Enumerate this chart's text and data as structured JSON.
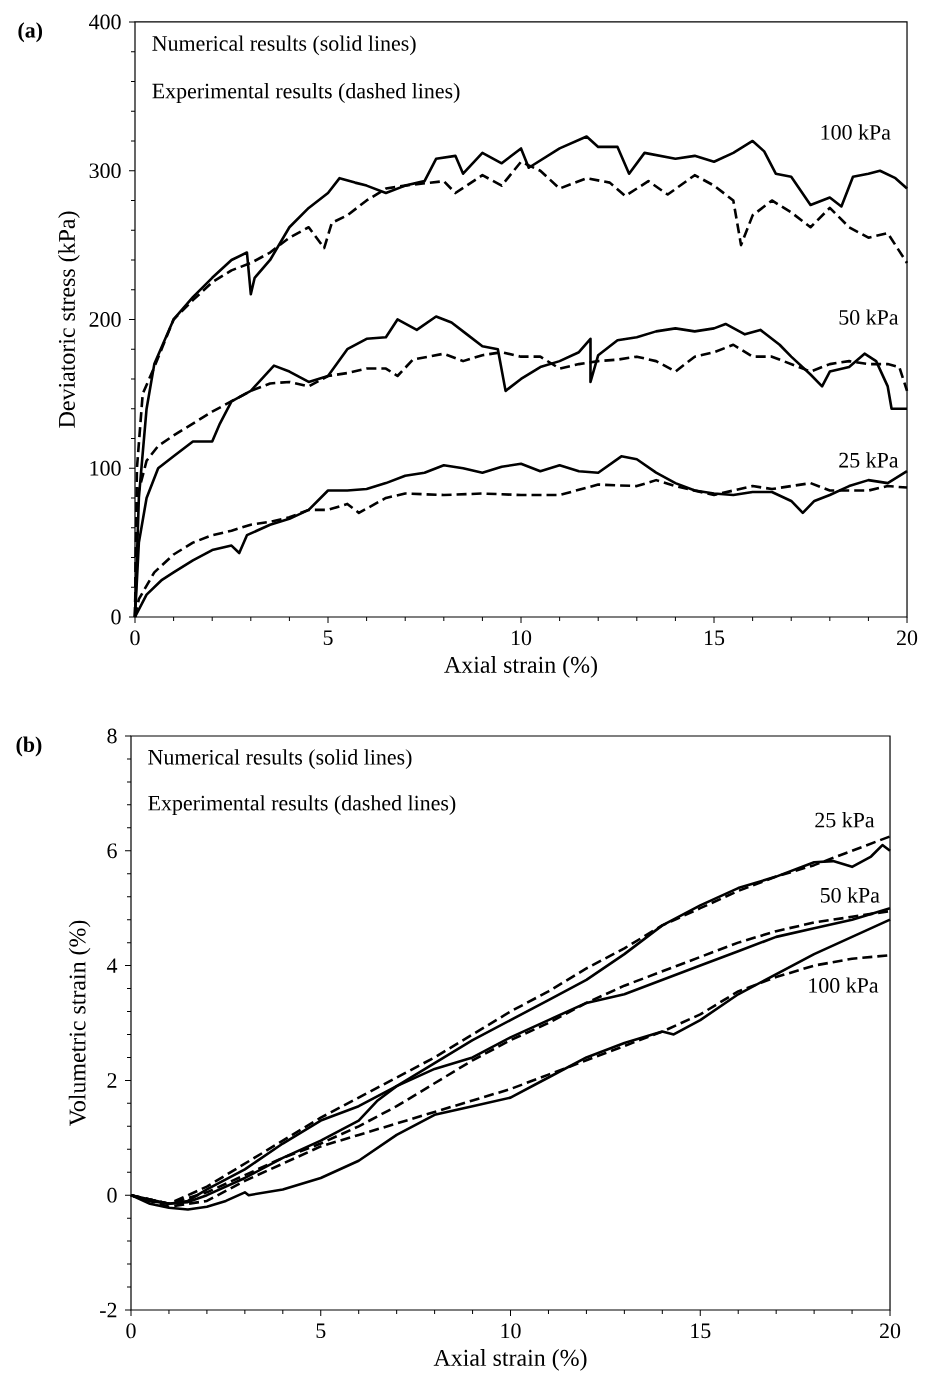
{
  "chart_data": [
    {
      "type": "line",
      "title": "(a)",
      "xlabel": "Axial strain (%)",
      "ylabel": "Deviatoric stress (kPa)",
      "xlim": [
        0,
        20
      ],
      "ylim": [
        0,
        400
      ],
      "xticks": [
        0,
        5,
        10,
        15,
        20
      ],
      "yticks": [
        0,
        100,
        200,
        300,
        400
      ],
      "annotations": [
        "Numerical results (solid lines)",
        "Experimental results (dashed lines)",
        "100 kPa",
        "50 kPa",
        "25 kPa"
      ],
      "series": [
        {
          "color": "#000000",
          "line_style": "solid",
          "x": [
            0,
            0.1,
            0.3,
            0.5,
            1,
            1.5,
            2,
            2.5,
            2.9,
            3,
            3.1,
            3.5,
            4,
            4.5,
            5,
            5.3,
            5.7,
            6,
            6.5,
            7,
            7.5,
            7.8,
            8.3,
            8.5,
            9,
            9.5,
            10,
            10.2,
            11,
            11.7,
            12,
            12.5,
            12.8,
            13.2,
            14,
            14.5,
            15,
            15.5,
            16,
            16.3,
            16.6,
            17,
            17.5,
            18,
            18.3,
            18.6,
            19,
            19.3,
            19.7,
            20
          ],
          "values": [
            0,
            80,
            140,
            170,
            200,
            215,
            228,
            240,
            245,
            217,
            228,
            240,
            262,
            275,
            285,
            295,
            292,
            290,
            285,
            290,
            293,
            308,
            310,
            298,
            312,
            305,
            315,
            302,
            315,
            323,
            316,
            316,
            298,
            312,
            308,
            310,
            306,
            312,
            320,
            313,
            298,
            296,
            277,
            282,
            276,
            296,
            298,
            300,
            295,
            288
          ]
        },
        {
          "color": "#000000",
          "line_style": "dashed",
          "x": [
            0,
            0.05,
            0.2,
            0.5,
            1,
            1.5,
            2,
            2.5,
            3,
            3.5,
            4,
            4.5,
            4.9,
            5.1,
            5.5,
            6,
            6.5,
            7,
            8,
            8.3,
            9,
            9.5,
            10,
            10.5,
            11,
            11.7,
            12.3,
            12.7,
            13.3,
            13.8,
            14.5,
            15,
            15.5,
            15.7,
            16,
            16.5,
            17,
            17.5,
            18,
            18.5,
            19,
            19.5,
            20
          ],
          "values": [
            0,
            100,
            150,
            168,
            200,
            213,
            225,
            233,
            238,
            245,
            255,
            262,
            248,
            265,
            270,
            280,
            288,
            290,
            293,
            285,
            297,
            290,
            306,
            300,
            288,
            295,
            292,
            283,
            293,
            284,
            297,
            290,
            280,
            250,
            270,
            280,
            272,
            262,
            275,
            262,
            255,
            258,
            238
          ]
        },
        {
          "color": "#000000",
          "line_style": "solid",
          "x": [
            0,
            0.1,
            0.3,
            0.6,
            1,
            1.5,
            2,
            2.2,
            2.5,
            3,
            3.6,
            4,
            4.5,
            5,
            5.5,
            6,
            6.5,
            6.8,
            7.3,
            7.8,
            8.2,
            8.6,
            9,
            9.4,
            9.6,
            10,
            10.5,
            11,
            11.5,
            11.8,
            11.8,
            12,
            12.5,
            13,
            13.5,
            14,
            14.5,
            15,
            15.3,
            15.8,
            16.2,
            16.7,
            17,
            17.5,
            17.8,
            18,
            18.5,
            18.9,
            19.2,
            19.5,
            19.6,
            20
          ],
          "values": [
            0,
            50,
            80,
            100,
            108,
            118,
            118,
            130,
            145,
            152,
            169,
            165,
            158,
            162,
            180,
            187,
            188,
            200,
            193,
            202,
            198,
            190,
            182,
            180,
            152,
            160,
            168,
            172,
            178,
            187,
            158,
            176,
            186,
            188,
            192,
            194,
            192,
            194,
            197,
            190,
            193,
            183,
            175,
            163,
            155,
            165,
            168,
            177,
            172,
            155,
            140,
            140
          ]
        },
        {
          "color": "#000000",
          "line_style": "dashed",
          "x": [
            0,
            0.05,
            0.3,
            0.6,
            1,
            1.5,
            2,
            2.5,
            3,
            3.5,
            4,
            4.5,
            5,
            5.5,
            6,
            6.5,
            6.8,
            7.2,
            8,
            8.5,
            9,
            9.5,
            10,
            10.5,
            11,
            11.5,
            12,
            12.5,
            13,
            13.5,
            14,
            14.5,
            15,
            15.5,
            16,
            16.5,
            17,
            17.5,
            18,
            18.5,
            19,
            19.5,
            19.8,
            20
          ],
          "values": [
            0,
            80,
            105,
            115,
            122,
            130,
            138,
            145,
            152,
            157,
            158,
            155,
            162,
            164,
            167,
            167,
            162,
            173,
            177,
            172,
            176,
            178,
            175,
            175,
            167,
            170,
            172,
            173,
            175,
            172,
            165,
            175,
            178,
            183,
            175,
            175,
            170,
            165,
            170,
            172,
            170,
            170,
            168,
            152
          ]
        },
        {
          "color": "#000000",
          "line_style": "solid",
          "x": [
            0,
            0.3,
            0.7,
            1,
            1.5,
            2,
            2.5,
            2.7,
            2.9,
            3.5,
            4,
            4.5,
            5,
            5.5,
            6,
            6.5,
            7,
            7.5,
            8,
            8.5,
            9,
            9.5,
            10,
            10.5,
            11,
            11.5,
            12,
            12.6,
            13,
            13.5,
            14,
            14.5,
            15,
            15.5,
            16,
            16.5,
            17,
            17.3,
            17.6,
            18,
            18.5,
            19,
            19.5,
            20
          ],
          "values": [
            0,
            15,
            25,
            30,
            38,
            45,
            48,
            43,
            55,
            62,
            66,
            72,
            85,
            85,
            86,
            90,
            95,
            97,
            102,
            100,
            97,
            101,
            103,
            98,
            102,
            98,
            97,
            108,
            106,
            97,
            90,
            85,
            83,
            82,
            84,
            84,
            78,
            70,
            78,
            82,
            88,
            92,
            90,
            98
          ]
        },
        {
          "color": "#000000",
          "line_style": "dashed",
          "x": [
            0,
            0.1,
            0.5,
            1,
            1.5,
            2,
            2.5,
            3,
            3.5,
            4,
            4.5,
            5,
            5.5,
            5.8,
            6.5,
            7,
            8,
            9,
            10,
            10.5,
            11,
            12,
            13,
            13.5,
            14,
            15,
            15.5,
            16,
            16.5,
            17,
            17.5,
            18,
            19,
            19.5,
            20
          ],
          "values": [
            0,
            12,
            30,
            42,
            50,
            55,
            58,
            62,
            64,
            67,
            72,
            72,
            76,
            70,
            80,
            83,
            82,
            83,
            82,
            82,
            82,
            89,
            88,
            92,
            88,
            82,
            85,
            88,
            86,
            88,
            90,
            85,
            85,
            88,
            87
          ]
        }
      ]
    },
    {
      "type": "line",
      "title": "(b)",
      "xlabel": "Axial strain (%)",
      "ylabel": "Volumetric strain (%)",
      "xlim": [
        0,
        20
      ],
      "ylim": [
        -2,
        8
      ],
      "xticks": [
        0,
        5,
        10,
        15,
        20
      ],
      "yticks": [
        -2,
        0,
        2,
        4,
        6,
        8
      ],
      "annotations": [
        "Numerical results (solid lines)",
        "Experimental results (dashed lines)",
        "25 kPa",
        "50 kPa",
        "100 kPa"
      ],
      "series": [
        {
          "color": "#000000",
          "line_style": "solid",
          "x": [
            0,
            0.5,
            1,
            1.5,
            2,
            3,
            4,
            5,
            6,
            7,
            8,
            9,
            10,
            11,
            12,
            13,
            14,
            15,
            16,
            17,
            18,
            18.5,
            19,
            19.5,
            19.8,
            20
          ],
          "values": [
            0,
            -0.1,
            -0.15,
            -0.1,
            0.1,
            0.45,
            0.9,
            1.3,
            1.55,
            1.9,
            2.3,
            2.7,
            3.05,
            3.4,
            3.75,
            4.2,
            4.7,
            5.05,
            5.35,
            5.55,
            5.8,
            5.82,
            5.72,
            5.9,
            6.1,
            6.0
          ]
        },
        {
          "color": "#000000",
          "line_style": "dashed",
          "x": [
            0,
            1,
            2,
            3,
            4,
            5,
            6,
            7,
            8,
            9,
            10,
            11,
            12,
            13,
            14,
            15,
            16,
            17,
            18,
            19,
            20
          ],
          "values": [
            0,
            -0.15,
            0.15,
            0.55,
            0.95,
            1.35,
            1.7,
            2.05,
            2.4,
            2.8,
            3.2,
            3.55,
            3.95,
            4.3,
            4.7,
            5.0,
            5.3,
            5.55,
            5.75,
            6.0,
            6.25
          ]
        },
        {
          "color": "#000000",
          "line_style": "solid",
          "x": [
            0,
            1,
            1.5,
            2,
            3,
            4,
            5,
            6,
            6.5,
            7,
            8,
            9,
            10,
            11,
            12,
            13,
            14,
            15,
            16,
            17,
            18,
            19,
            20
          ],
          "values": [
            0,
            -0.15,
            -0.12,
            0.0,
            0.3,
            0.65,
            0.95,
            1.3,
            1.65,
            1.9,
            2.2,
            2.4,
            2.75,
            3.05,
            3.35,
            3.5,
            3.75,
            4.0,
            4.25,
            4.5,
            4.65,
            4.8,
            5.0
          ]
        },
        {
          "color": "#000000",
          "line_style": "dashed",
          "x": [
            0,
            1,
            2,
            3,
            4,
            5,
            6,
            7,
            8,
            9,
            10,
            11,
            12,
            13,
            14,
            15,
            16,
            17,
            18,
            19,
            20
          ],
          "values": [
            0,
            -0.15,
            0.05,
            0.35,
            0.65,
            0.9,
            1.2,
            1.55,
            1.95,
            2.35,
            2.7,
            3.0,
            3.35,
            3.65,
            3.9,
            4.15,
            4.4,
            4.6,
            4.75,
            4.85,
            4.95
          ]
        },
        {
          "color": "#000000",
          "line_style": "solid",
          "x": [
            0,
            0.5,
            1,
            1.5,
            2,
            2.5,
            3,
            3.1,
            4,
            5,
            6,
            7,
            8,
            9,
            10,
            11,
            12,
            13,
            14,
            14.3,
            15,
            16,
            17,
            18,
            19,
            20
          ],
          "values": [
            0,
            -0.15,
            -0.22,
            -0.25,
            -0.2,
            -0.1,
            0.05,
            0.0,
            0.1,
            0.3,
            0.6,
            1.05,
            1.4,
            1.55,
            1.7,
            2.05,
            2.4,
            2.65,
            2.85,
            2.8,
            3.05,
            3.5,
            3.85,
            4.2,
            4.5,
            4.8
          ]
        },
        {
          "color": "#000000",
          "line_style": "dashed",
          "x": [
            0,
            1,
            2,
            3,
            4,
            5,
            6,
            7,
            8,
            9,
            10,
            11,
            12,
            13,
            14,
            15,
            16,
            17,
            18,
            19,
            20
          ],
          "values": [
            0,
            -0.2,
            -0.1,
            0.25,
            0.55,
            0.85,
            1.05,
            1.25,
            1.45,
            1.65,
            1.85,
            2.1,
            2.35,
            2.6,
            2.85,
            3.15,
            3.55,
            3.8,
            4.0,
            4.12,
            4.18
          ]
        }
      ]
    }
  ]
}
